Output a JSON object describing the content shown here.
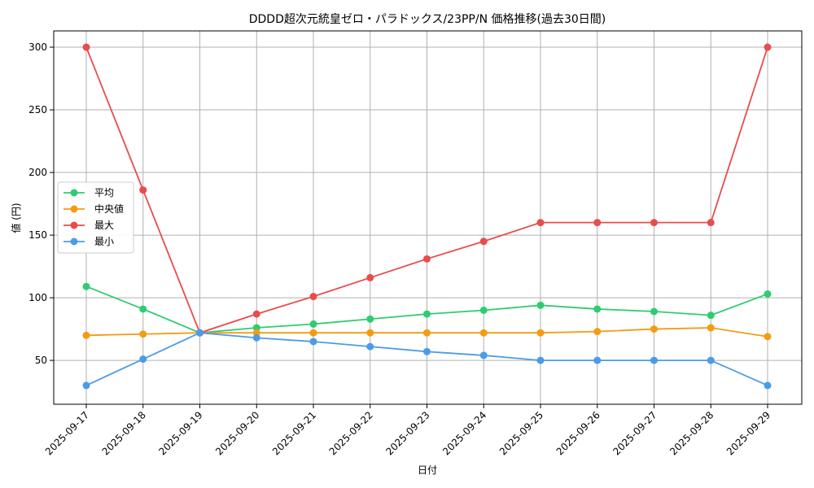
{
  "chart_data": {
    "type": "line",
    "title": "DDDD超次元統皇ゼロ・パラドックス/23PP/N 価格推移(過去30日間)",
    "xlabel": "日付",
    "ylabel": "値 (円)",
    "categories": [
      "2025-09-17",
      "2025-09-18",
      "2025-09-19",
      "2025-09-20",
      "2025-09-21",
      "2025-09-22",
      "2025-09-23",
      "2025-09-24",
      "2025-09-25",
      "2025-09-26",
      "2025-09-27",
      "2025-09-28",
      "2025-09-29"
    ],
    "ylim": [
      15,
      313
    ],
    "yticks": [
      50,
      100,
      150,
      200,
      250,
      300
    ],
    "grid": true,
    "legend_position": "center-left",
    "series": [
      {
        "name": "平均",
        "color": "#2ecc71",
        "values": [
          109,
          91,
          72,
          76,
          79,
          83,
          87,
          90,
          94,
          91,
          89,
          86,
          103
        ]
      },
      {
        "name": "中央値",
        "color": "#f39c12",
        "values": [
          70,
          71,
          72,
          72,
          72,
          72,
          72,
          72,
          72,
          73,
          75,
          76,
          69
        ]
      },
      {
        "name": "最大",
        "color": "#e84c4c",
        "values": [
          300,
          186,
          72,
          87,
          101,
          116,
          131,
          145,
          160,
          160,
          160,
          160,
          300
        ]
      },
      {
        "name": "最小",
        "color": "#4c9be8",
        "values": [
          30,
          51,
          72,
          68,
          65,
          61,
          57,
          54,
          50,
          50,
          50,
          50,
          30
        ]
      }
    ]
  }
}
